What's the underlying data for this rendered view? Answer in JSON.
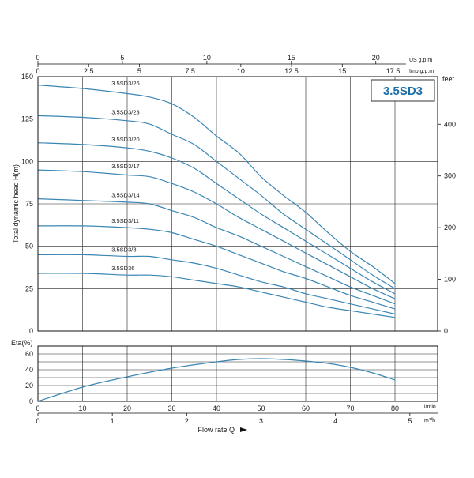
{
  "chart_data": [
    {
      "type": "line",
      "title": "3.5SD3",
      "ylabel": "Total dynamic head H(m)",
      "ylim": [
        0,
        150
      ],
      "xlim": [
        0,
        90
      ],
      "y_ticks": [
        0,
        25,
        50,
        75,
        100,
        125,
        150
      ],
      "right_axis": {
        "label": "feet",
        "ticks": [
          0,
          100,
          200,
          300,
          400
        ]
      },
      "top_axis_us": {
        "label": "US g.p.m",
        "ticks": [
          0,
          5,
          10,
          15,
          20
        ]
      },
      "top_axis_imp": {
        "label": "Imp g.p.m",
        "ticks": [
          "0",
          "2.5",
          "5",
          "7.5",
          "10",
          "12.5",
          "15",
          "17.5"
        ]
      },
      "grid": true,
      "series": [
        {
          "name": "3.5SD3/26",
          "x": [
            0,
            10,
            20,
            25,
            30,
            35,
            40,
            45,
            50,
            55,
            60,
            65,
            70,
            75,
            80
          ],
          "y": [
            145,
            143,
            140,
            138,
            134,
            126,
            115,
            105,
            91,
            80,
            70,
            58,
            47,
            38,
            28
          ]
        },
        {
          "name": "3.5SD3/23",
          "x": [
            0,
            10,
            20,
            25,
            30,
            35,
            40,
            45,
            50,
            55,
            60,
            65,
            70,
            75,
            80
          ],
          "y": [
            127,
            126,
            124,
            122,
            116,
            110,
            100,
            90,
            80,
            69,
            60,
            51,
            42,
            33,
            25
          ]
        },
        {
          "name": "3.5SD3/20",
          "x": [
            0,
            10,
            20,
            25,
            30,
            35,
            40,
            45,
            50,
            55,
            60,
            65,
            70,
            75,
            80
          ],
          "y": [
            111,
            110,
            108,
            106,
            102,
            96,
            87,
            78,
            69,
            61,
            53,
            45,
            37,
            29,
            22
          ]
        },
        {
          "name": "3.5SD3/17",
          "x": [
            0,
            10,
            20,
            25,
            30,
            35,
            40,
            45,
            50,
            55,
            60,
            65,
            70,
            75,
            80
          ],
          "y": [
            95,
            94,
            92,
            91,
            87,
            82,
            75,
            67,
            60,
            53,
            46,
            39,
            32,
            25,
            19
          ]
        },
        {
          "name": "3.5SD3/14",
          "x": [
            0,
            10,
            20,
            25,
            30,
            35,
            40,
            45,
            50,
            55,
            60,
            65,
            70,
            75,
            80
          ],
          "y": [
            78,
            77,
            76,
            75,
            71,
            67,
            61,
            56,
            50,
            44,
            38,
            32,
            26,
            21,
            16
          ]
        },
        {
          "name": "3.5SD3/11",
          "x": [
            0,
            10,
            20,
            25,
            30,
            35,
            40,
            45,
            50,
            55,
            60,
            65,
            70,
            75,
            80
          ],
          "y": [
            62,
            62,
            61,
            60,
            58,
            54,
            50,
            45,
            40,
            35,
            31,
            26,
            21,
            17,
            13
          ]
        },
        {
          "name": "3.5SD3/8",
          "x": [
            0,
            10,
            20,
            25,
            30,
            35,
            40,
            45,
            50,
            55,
            60,
            65,
            70,
            75,
            80
          ],
          "y": [
            45,
            45,
            44,
            44,
            42,
            40,
            37,
            33,
            29,
            26,
            22,
            19,
            16,
            13,
            10
          ]
        },
        {
          "name": "3.5SD36",
          "x": [
            0,
            10,
            20,
            25,
            30,
            35,
            40,
            45,
            50,
            55,
            60,
            65,
            70,
            75,
            80
          ],
          "y": [
            34,
            34,
            33,
            33,
            32,
            30,
            28,
            26,
            23,
            20,
            17,
            14,
            12,
            10,
            8
          ]
        }
      ]
    },
    {
      "type": "line",
      "ylabel": "Eta(%)",
      "xlabel": "Flow rate Q",
      "ylim": [
        0,
        70
      ],
      "xlim": [
        0,
        90
      ],
      "y_ticks": [
        0,
        20,
        40,
        60
      ],
      "x_ticks": [
        0,
        10,
        20,
        30,
        40,
        50,
        60,
        70,
        80
      ],
      "x_unit": "l/min",
      "bottom_axis_m3h": {
        "unit": "m³/h",
        "ticks": [
          0,
          1,
          2,
          3,
          4,
          5
        ]
      },
      "grid": true,
      "series": [
        {
          "x": [
            0,
            10,
            20,
            30,
            40,
            45,
            50,
            55,
            60,
            65,
            70,
            75,
            80
          ],
          "y": [
            0,
            18,
            31,
            42,
            50,
            53,
            54,
            53,
            51,
            48,
            43,
            36,
            27
          ]
        }
      ]
    }
  ]
}
